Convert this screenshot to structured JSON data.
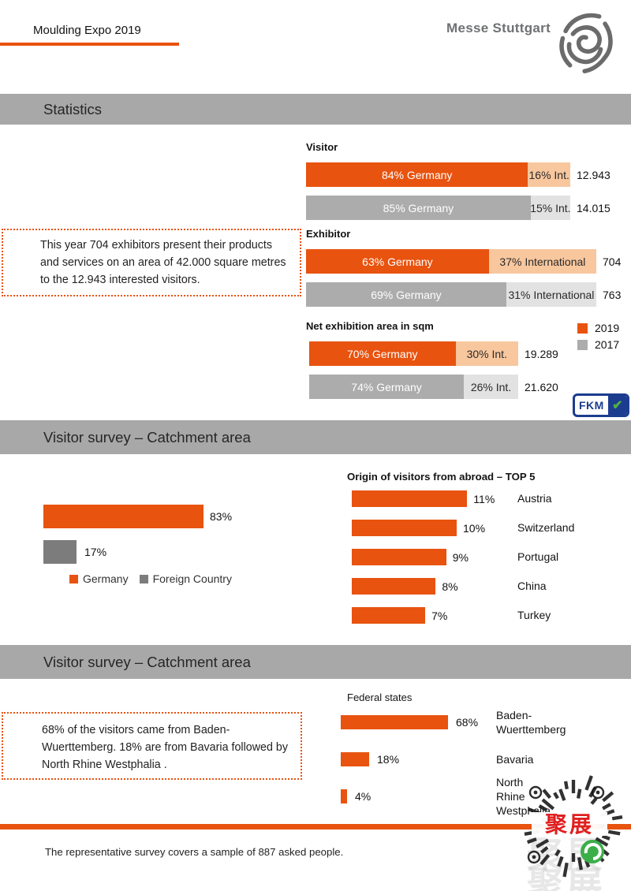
{
  "header": {
    "title": "Moulding Expo 2019",
    "brand": "Messe Stuttgart"
  },
  "sections": {
    "statistics": "Statistics",
    "survey1": "Visitor survey – Catchment area",
    "survey2": "Visitor survey – Catchment area"
  },
  "notes": {
    "exhibitors": "This year 704 exhibitors present their products and services on an area of  42.000 square metres to the 12.943 interested visitors.",
    "states": "68% of the visitors came from Baden-Wuerttemberg. 18% are from Bavaria followed by North Rhine Westphalia ."
  },
  "footer": {
    "text": "The representative survey covers a sample of 887 asked people."
  },
  "fkm": {
    "label": "FKM",
    "check": "✔"
  },
  "watermark": {
    "text": "聚展"
  },
  "colors": {
    "orange2019": "#E8530F",
    "orangeLight": "#F8C79E",
    "gray2017": "#ACACAC",
    "grayLight": "#E2E2E2",
    "bannerGray": "#A8A8A8",
    "surveyGray": "#7C7C7C",
    "fkmNavy": "#1C3D8F",
    "fkmGreen": "#52B043"
  },
  "chart_data": [
    {
      "id": "statistics",
      "type": "bar",
      "legend": [
        "2019",
        "2017"
      ],
      "legend_colors": [
        "#E8530F",
        "#ACACAC"
      ],
      "groups": [
        {
          "title": "Visitor",
          "rows": [
            {
              "year": "2019",
              "germany_pct": 84,
              "intl_pct": 16,
              "germany_label": "84% Germany",
              "intl_label": "16% Int.",
              "value": "12.943"
            },
            {
              "year": "2017",
              "germany_pct": 85,
              "intl_pct": 15,
              "germany_label": "85% Germany",
              "intl_label": "15% Int.",
              "value": "14.015"
            }
          ]
        },
        {
          "title": "Exhibitor",
          "rows": [
            {
              "year": "2019",
              "germany_pct": 63,
              "intl_pct": 37,
              "germany_label": "63% Germany",
              "intl_label": "37% International",
              "value": "704"
            },
            {
              "year": "2017",
              "germany_pct": 69,
              "intl_pct": 31,
              "germany_label": "69% Germany",
              "intl_label": "31% International",
              "value": "763"
            }
          ]
        },
        {
          "title": "Net exhibition area in sqm",
          "rows": [
            {
              "year": "2019",
              "germany_pct": 70,
              "intl_pct": 30,
              "germany_label": "70% Germany",
              "intl_label": "30% Int.",
              "value": "19.289"
            },
            {
              "year": "2017",
              "germany_pct": 74,
              "intl_pct": 26,
              "germany_label": "74% Germany",
              "intl_label": "26% Int.",
              "value": "21.620"
            }
          ]
        }
      ]
    },
    {
      "id": "catchment",
      "type": "bar",
      "categories": [
        "Germany",
        "Foreign Country"
      ],
      "values": [
        83,
        17
      ],
      "labels": [
        "83%",
        "17%"
      ]
    },
    {
      "id": "top5",
      "type": "bar",
      "title": "Origin of visitors from abroad – TOP 5",
      "categories": [
        "Austria",
        "Switzerland",
        "Portugal",
        "China",
        "Turkey"
      ],
      "values": [
        11,
        10,
        9,
        8,
        7
      ],
      "labels": [
        "11%",
        "10%",
        "9%",
        "8%",
        "7%"
      ]
    },
    {
      "id": "federal",
      "type": "bar",
      "title": "Federal states",
      "categories": [
        "Baden-Wuerttemberg",
        "Bavaria",
        "North Rhine Westphalia"
      ],
      "values": [
        68,
        18,
        4
      ],
      "labels": [
        "68%",
        "18%",
        "4%"
      ]
    }
  ]
}
